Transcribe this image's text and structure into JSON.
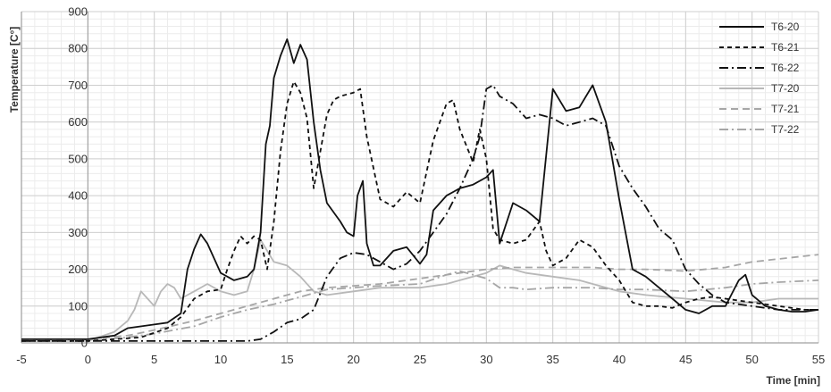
{
  "chart_data": {
    "type": "line",
    "xlabel": "Time [min]",
    "ylabel": "Temperature [C°]",
    "xlim": [
      -5,
      55
    ],
    "ylim": [
      0,
      900
    ],
    "x_ticks": [
      -5,
      0,
      5,
      10,
      15,
      20,
      25,
      30,
      35,
      40,
      45,
      50,
      55
    ],
    "y_ticks": [
      0,
      100,
      200,
      300,
      400,
      500,
      600,
      700,
      800,
      900
    ],
    "grid": true,
    "legend_position": "top-right",
    "series": [
      {
        "name": "T6-20",
        "color": "#111111",
        "dash": "solid",
        "x": [
          -5,
          0,
          2,
          3,
          5,
          6,
          7,
          7.5,
          8,
          8.5,
          9,
          10,
          11,
          12,
          12.5,
          13,
          13.4,
          13.7,
          14,
          14.5,
          15,
          15.5,
          16,
          16.5,
          17,
          17.5,
          18,
          19,
          19.5,
          20,
          20.3,
          20.7,
          21,
          21.5,
          22,
          23,
          24,
          25,
          25.5,
          26,
          27,
          28,
          29,
          30,
          30.5,
          31,
          32,
          33,
          34,
          35,
          36,
          37,
          38,
          39,
          40,
          41,
          42,
          43,
          44,
          45,
          46,
          47,
          48,
          49,
          49.5,
          50,
          51,
          52,
          53,
          54,
          55
        ],
        "y": [
          10,
          10,
          20,
          40,
          50,
          55,
          80,
          200,
          255,
          295,
          270,
          190,
          170,
          180,
          200,
          300,
          540,
          590,
          720,
          780,
          825,
          760,
          810,
          770,
          600,
          470,
          380,
          330,
          300,
          290,
          400,
          440,
          270,
          210,
          210,
          250,
          260,
          215,
          240,
          360,
          400,
          420,
          430,
          450,
          470,
          270,
          380,
          360,
          330,
          690,
          630,
          640,
          700,
          600,
          390,
          200,
          180,
          150,
          120,
          90,
          80,
          100,
          100,
          170,
          185,
          130,
          100,
          90,
          85,
          85,
          90
        ]
      },
      {
        "name": "T6-21",
        "color": "#111111",
        "dash": "5,4",
        "x": [
          -5,
          0,
          2,
          4,
          6,
          7,
          8,
          9,
          10,
          10.5,
          11,
          11.5,
          12,
          12.5,
          13,
          13.5,
          14,
          14.5,
          15,
          15.5,
          16,
          16.5,
          17,
          18,
          18.5,
          19,
          20,
          20.5,
          21,
          22,
          23,
          24,
          25,
          26,
          27,
          27.5,
          28,
          29,
          29.5,
          30,
          30.5,
          31,
          32,
          33,
          34,
          34.5,
          35,
          36,
          37,
          38,
          39,
          40,
          41,
          42,
          43,
          44,
          45,
          46,
          47,
          48,
          50,
          52,
          54,
          55
        ],
        "y": [
          5,
          5,
          10,
          15,
          40,
          70,
          120,
          140,
          145,
          200,
          250,
          290,
          270,
          290,
          280,
          200,
          330,
          520,
          650,
          710,
          680,
          610,
          420,
          620,
          660,
          670,
          680,
          690,
          560,
          390,
          370,
          410,
          380,
          550,
          650,
          660,
          580,
          490,
          580,
          500,
          310,
          280,
          270,
          280,
          330,
          250,
          210,
          230,
          280,
          260,
          210,
          170,
          110,
          100,
          100,
          95,
          110,
          120,
          125,
          120,
          110,
          100,
          90,
          90
        ]
      },
      {
        "name": "T6-22",
        "color": "#111111",
        "dash": "10,4,2,4",
        "x": [
          -5,
          0,
          5,
          10,
          12,
          13,
          14,
          15,
          16,
          17,
          18,
          19,
          20,
          21,
          22,
          23,
          24,
          25,
          26,
          27,
          28,
          29,
          29.5,
          30,
          30.5,
          31,
          32,
          33,
          34,
          35,
          36,
          37,
          38,
          39,
          40,
          41,
          42,
          43,
          44,
          45,
          46,
          47,
          48,
          50,
          52,
          55
        ],
        "y": [
          5,
          5,
          5,
          5,
          5,
          10,
          30,
          55,
          65,
          90,
          180,
          230,
          245,
          240,
          220,
          200,
          215,
          250,
          300,
          350,
          420,
          500,
          560,
          690,
          700,
          670,
          650,
          610,
          620,
          610,
          590,
          600,
          610,
          590,
          480,
          420,
          370,
          310,
          280,
          200,
          160,
          130,
          110,
          100,
          90,
          90
        ]
      },
      {
        "name": "T7-20",
        "color": "#b8b8b8",
        "dash": "solid",
        "x": [
          -5,
          0,
          2,
          3,
          3.5,
          4,
          4.5,
          5,
          5.5,
          6,
          6.5,
          7,
          7.5,
          8,
          9,
          10,
          11,
          12,
          12.5,
          13,
          14,
          15,
          16,
          17,
          18,
          20,
          22,
          25,
          27,
          29,
          30,
          31,
          32,
          33,
          35,
          37,
          40,
          42,
          45,
          48,
          50,
          52,
          55
        ],
        "y": [
          5,
          5,
          30,
          60,
          90,
          140,
          120,
          100,
          140,
          160,
          150,
          120,
          130,
          140,
          160,
          140,
          130,
          140,
          200,
          280,
          220,
          210,
          180,
          140,
          130,
          140,
          150,
          150,
          160,
          180,
          190,
          210,
          200,
          190,
          180,
          170,
          140,
          130,
          120,
          110,
          110,
          120,
          120
        ]
      },
      {
        "name": "T7-21",
        "color": "#a6a6a6",
        "dash": "8,5",
        "x": [
          -5,
          0,
          3,
          5,
          8,
          10,
          12,
          14,
          16,
          18,
          20,
          22,
          25,
          28,
          30,
          32,
          35,
          38,
          40,
          42,
          45,
          48,
          50,
          52,
          55
        ],
        "y": [
          10,
          10,
          20,
          35,
          60,
          80,
          100,
          120,
          140,
          150,
          155,
          160,
          175,
          190,
          200,
          205,
          205,
          205,
          200,
          200,
          195,
          205,
          220,
          228,
          240
        ]
      },
      {
        "name": "T7-22",
        "color": "#a6a6a6",
        "dash": "10,4,2,4",
        "x": [
          -5,
          0,
          3,
          5,
          8,
          10,
          12,
          14,
          16,
          18,
          20,
          22,
          25,
          27,
          28,
          30,
          31,
          32,
          33,
          35,
          38,
          40,
          42,
          45,
          48,
          50,
          52,
          55
        ],
        "y": [
          5,
          5,
          15,
          25,
          45,
          70,
          90,
          105,
          125,
          145,
          150,
          155,
          160,
          185,
          195,
          175,
          150,
          150,
          145,
          150,
          150,
          145,
          145,
          140,
          150,
          160,
          165,
          170
        ]
      }
    ]
  }
}
